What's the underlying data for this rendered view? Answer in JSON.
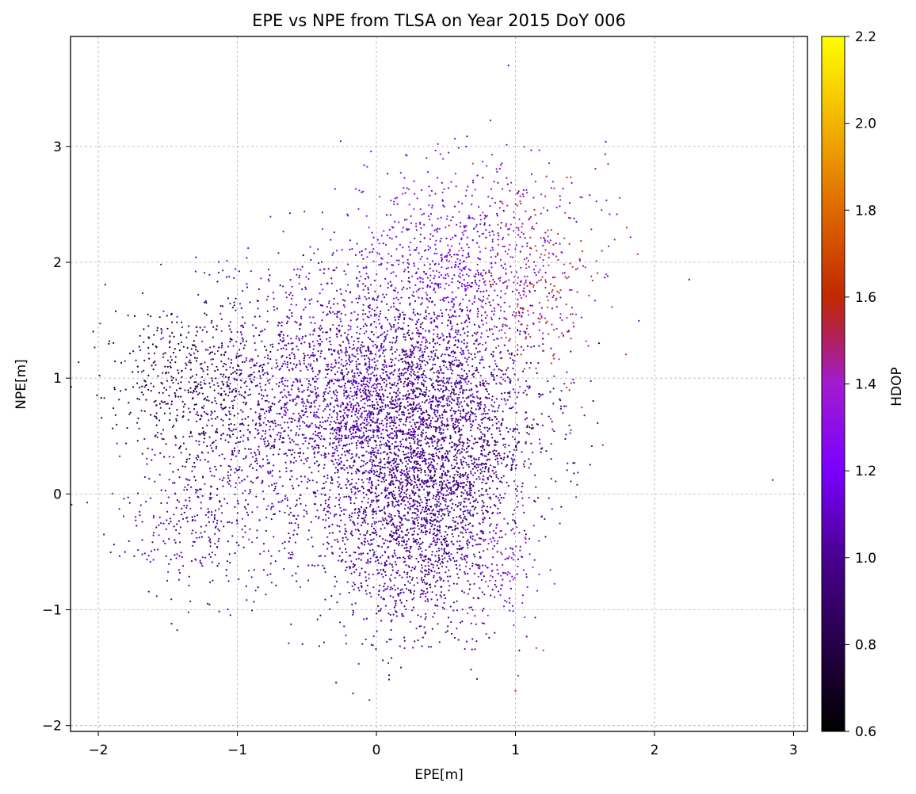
{
  "chart_data": {
    "type": "scatter",
    "title": "EPE vs NPE from TLSA on Year 2015 DoY 006",
    "xlabel": "EPE[m]",
    "ylabel": "NPE[m]",
    "xlim": [
      -2.2,
      3.1
    ],
    "ylim": [
      -2.05,
      3.95
    ],
    "xticks": [
      -2,
      -1,
      0,
      1,
      2,
      3
    ],
    "yticks": [
      -2,
      -1,
      0,
      1,
      2,
      3
    ],
    "xtick_labels": [
      "−2",
      "−1",
      "0",
      "1",
      "2",
      "3"
    ],
    "ytick_labels": [
      "−2",
      "−1",
      "0",
      "1",
      "2",
      "3"
    ],
    "grid": true,
    "colormap": "gnuplot",
    "colorbar": {
      "label": "HDOP",
      "range": [
        0.6,
        2.2
      ],
      "ticks": [
        0.6,
        0.8,
        1.0,
        1.2,
        1.4,
        1.6,
        1.8,
        2.0,
        2.2
      ],
      "tick_labels": [
        "0.6",
        "0.8",
        "1.0",
        "1.2",
        "1.4",
        "1.6",
        "1.8",
        "2.0",
        "2.2"
      ]
    },
    "clusters": [
      {
        "x": -0.2,
        "y": 0.85,
        "sx": 0.55,
        "sy": 0.55,
        "n": 2600,
        "hdop": 1.05
      },
      {
        "x": 0.4,
        "y": 0.45,
        "sx": 0.38,
        "sy": 0.55,
        "n": 2200,
        "hdop": 0.95
      },
      {
        "x": 0.25,
        "y": -0.4,
        "sx": 0.35,
        "sy": 0.45,
        "n": 1100,
        "hdop": 1.0
      },
      {
        "x": -1.3,
        "y": 0.95,
        "sx": 0.3,
        "sy": 0.35,
        "n": 500,
        "hdop": 0.78
      },
      {
        "x": -1.2,
        "y": -0.2,
        "sx": 0.3,
        "sy": 0.35,
        "n": 350,
        "hdop": 1.0
      },
      {
        "x": 0.6,
        "y": 2.0,
        "sx": 0.4,
        "sy": 0.45,
        "n": 800,
        "hdop": 1.18
      },
      {
        "x": 1.15,
        "y": 1.8,
        "sx": 0.25,
        "sy": 0.45,
        "n": 260,
        "hdop": 1.5
      },
      {
        "x": 0.9,
        "y": -0.6,
        "sx": 0.15,
        "sy": 0.25,
        "n": 120,
        "hdop": 1.3
      }
    ],
    "points": [
      {
        "x": 2.25,
        "y": 1.85,
        "hdop": 1.0
      },
      {
        "x": 2.85,
        "y": 0.12,
        "hdop": 1.0
      },
      {
        "x": 0.95,
        "y": 3.7,
        "hdop": 1.1
      },
      {
        "x": 1.0,
        "y": -1.7,
        "hdop": 1.6
      },
      {
        "x": 1.02,
        "y": -1.57,
        "hdop": 1.6
      },
      {
        "x": 1.88,
        "y": 2.07,
        "hdop": 1.6
      },
      {
        "x": 1.8,
        "y": 2.3,
        "hdop": 1.6
      },
      {
        "x": -1.96,
        "y": -0.35,
        "hdop": 1.0
      },
      {
        "x": -1.92,
        "y": 1.32,
        "hdop": 0.8
      },
      {
        "x": 1.65,
        "y": 3.04,
        "hdop": 1.1
      },
      {
        "x": -0.05,
        "y": -1.78,
        "hdop": 1.0
      },
      {
        "x": 1.2,
        "y": -1.35,
        "hdop": 1.5
      },
      {
        "x": 1.15,
        "y": -1.33,
        "hdop": 1.5
      }
    ]
  }
}
